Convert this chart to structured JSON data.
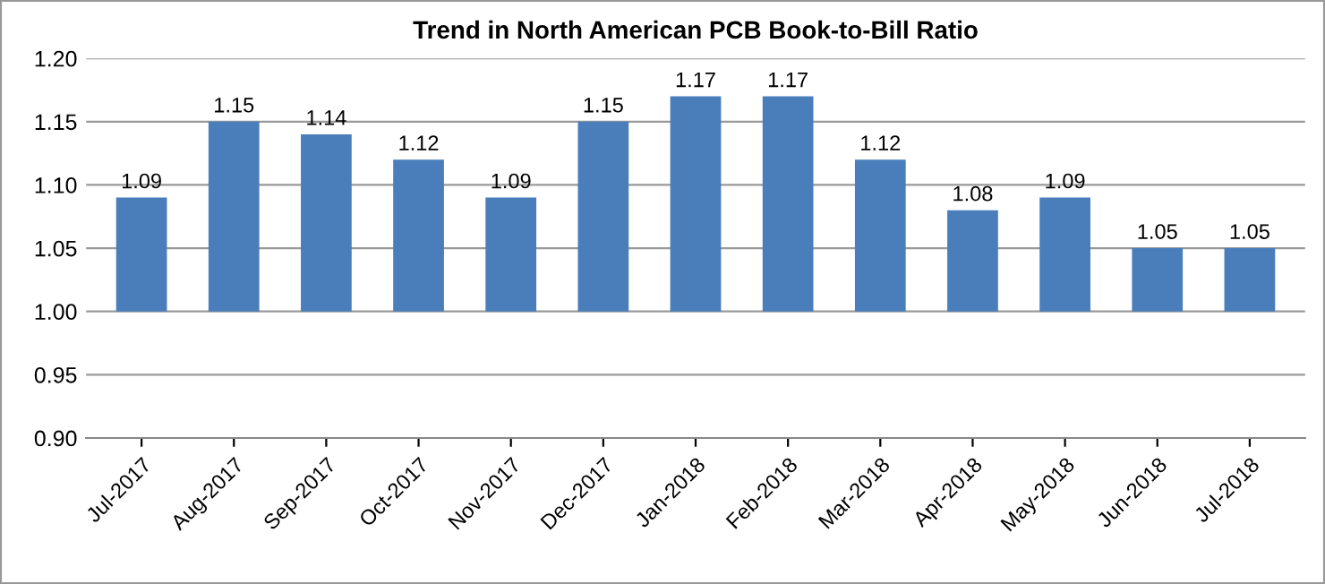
{
  "chart_data": {
    "type": "bar",
    "title": "Trend in North American PCB Book-to-Bill Ratio",
    "categories": [
      "Jul-2017",
      "Aug-2017",
      "Sep-2017",
      "Oct-2017",
      "Nov-2017",
      "Dec-2017",
      "Jan-2018",
      "Feb-2018",
      "Mar-2018",
      "Apr-2018",
      "May-2018",
      "Jun-2018",
      "Jul-2018"
    ],
    "base": [
      1.0,
      1.0,
      1.0,
      1.0,
      1.0,
      1.0,
      1.0,
      1.0,
      1.0,
      1.0,
      1.0,
      1.0,
      1.0
    ],
    "values": [
      0.09,
      0.15,
      0.14,
      0.12,
      0.09,
      0.15,
      0.17,
      0.17,
      0.12,
      0.08,
      0.09,
      0.05,
      0.05
    ],
    "value_labels": [
      "1.09",
      "1.15",
      "1.14",
      "1.12",
      "1.09",
      "1.15",
      "1.17",
      "1.17",
      "1.12",
      "1.08",
      "1.09",
      "1.05",
      "1.05"
    ],
    "color": "#4a7ebb",
    "ylim": [
      0.9,
      1.2
    ],
    "yticks": [
      {
        "value": 0.9,
        "label": "0.90"
      },
      {
        "value": 0.95,
        "label": "0.95"
      },
      {
        "value": 1.0,
        "label": "1.00"
      },
      {
        "value": 1.05,
        "label": "1.05"
      },
      {
        "value": 1.1,
        "label": "1.10"
      },
      {
        "value": 1.15,
        "label": "1.15"
      },
      {
        "value": 1.2,
        "label": "1.20"
      }
    ],
    "grid": "y",
    "legend": false
  }
}
